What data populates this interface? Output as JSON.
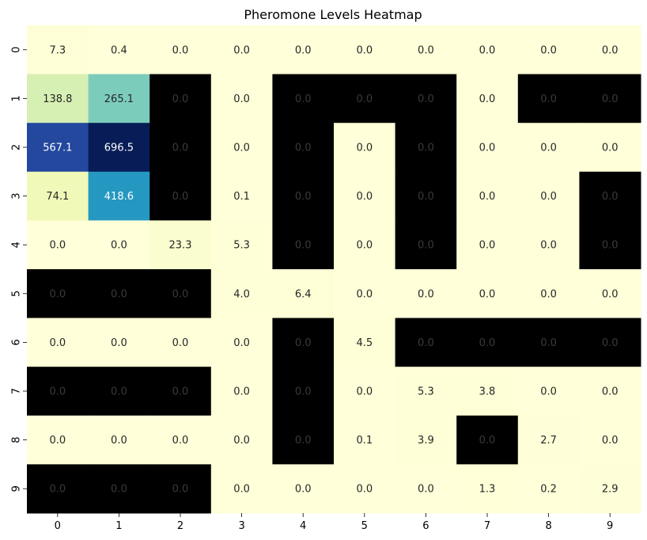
{
  "chart_data": {
    "type": "heatmap",
    "title": "Pheromone Levels Heatmap",
    "xlabel": "",
    "ylabel": "",
    "x_categories": [
      "0",
      "1",
      "2",
      "3",
      "4",
      "5",
      "6",
      "7",
      "8",
      "9"
    ],
    "y_categories": [
      "0",
      "1",
      "2",
      "3",
      "4",
      "5",
      "6",
      "7",
      "8",
      "9"
    ],
    "colormap": "YlGnBu",
    "color_range": [
      0,
      696.5
    ],
    "obstacle_color": "#000000",
    "values": [
      [
        7.3,
        0.4,
        0.0,
        0.0,
        0.0,
        0.0,
        0.0,
        0.0,
        0.0,
        0.0
      ],
      [
        138.8,
        265.1,
        0.0,
        0.0,
        0.0,
        0.0,
        0.0,
        0.0,
        0.0,
        0.0
      ],
      [
        567.1,
        696.5,
        0.0,
        0.0,
        0.0,
        0.0,
        0.0,
        0.0,
        0.0,
        0.0
      ],
      [
        74.1,
        418.6,
        0.0,
        0.1,
        0.0,
        0.0,
        0.0,
        0.0,
        0.0,
        0.0
      ],
      [
        0.0,
        0.0,
        23.3,
        5.3,
        0.0,
        0.0,
        0.0,
        0.0,
        0.0,
        0.0
      ],
      [
        0.0,
        0.0,
        0.0,
        4.0,
        6.4,
        0.0,
        0.0,
        0.0,
        0.0,
        0.0
      ],
      [
        0.0,
        0.0,
        0.0,
        0.0,
        0.0,
        4.5,
        0.0,
        0.0,
        0.0,
        0.0
      ],
      [
        0.0,
        0.0,
        0.0,
        0.0,
        0.0,
        0.0,
        5.3,
        3.8,
        0.0,
        0.0
      ],
      [
        0.0,
        0.0,
        0.0,
        0.0,
        0.0,
        0.1,
        3.9,
        0.0,
        2.7,
        0.0
      ],
      [
        0.0,
        0.0,
        0.0,
        0.0,
        0.0,
        0.0,
        0.0,
        1.3,
        0.2,
        2.9
      ]
    ],
    "obstacles": [
      [
        0,
        0,
        0,
        0,
        0,
        0,
        0,
        0,
        0,
        0
      ],
      [
        0,
        0,
        1,
        0,
        1,
        1,
        1,
        0,
        1,
        1
      ],
      [
        0,
        0,
        1,
        0,
        1,
        0,
        1,
        0,
        0,
        0
      ],
      [
        0,
        0,
        1,
        0,
        1,
        0,
        1,
        0,
        0,
        1
      ],
      [
        0,
        0,
        0,
        0,
        1,
        0,
        1,
        0,
        0,
        1
      ],
      [
        1,
        1,
        1,
        0,
        0,
        0,
        0,
        0,
        0,
        0
      ],
      [
        0,
        0,
        0,
        0,
        1,
        0,
        1,
        1,
        1,
        1
      ],
      [
        1,
        1,
        1,
        0,
        1,
        0,
        0,
        0,
        0,
        0
      ],
      [
        0,
        0,
        0,
        0,
        1,
        0,
        0,
        1,
        0,
        0
      ],
      [
        1,
        1,
        1,
        0,
        0,
        0,
        0,
        0,
        0,
        0
      ]
    ],
    "annotations": "cell values with one decimal",
    "grid": false,
    "colorbar": false
  }
}
